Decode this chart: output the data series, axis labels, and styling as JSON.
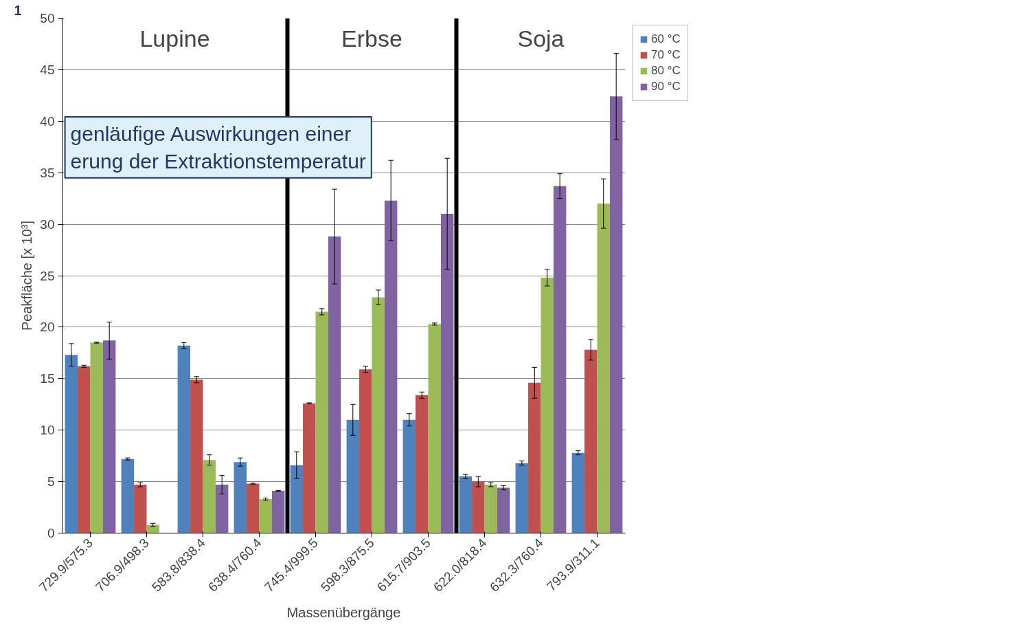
{
  "chart_data": {
    "type": "bar",
    "xlabel": "Massenübergänge",
    "ylabel": "Peakfläche [x 10³]",
    "categories": [
      "729.9/575.3",
      "706.9/498.3",
      "583.8/838.4",
      "638.4/760.4",
      "745.4/999.5",
      "598.3/875.5",
      "615.7/903.5",
      "622.0/818.4",
      "632.3/760.4",
      "793.9/311.1"
    ],
    "series": [
      {
        "name": "60 °C",
        "color": "#4f81bd",
        "values": [
          17.3,
          7.2,
          18.2,
          6.9,
          6.6,
          11.0,
          11.0,
          5.5,
          6.8,
          7.8
        ],
        "errors": [
          1.1,
          0.1,
          0.3,
          0.4,
          1.3,
          1.5,
          0.6,
          0.2,
          0.2,
          0.2
        ]
      },
      {
        "name": "70 °C",
        "color": "#c0504d",
        "values": [
          16.2,
          4.7,
          14.9,
          4.8,
          12.6,
          15.9,
          13.4,
          5.0,
          14.6,
          17.8
        ],
        "errors": [
          0.1,
          0.2,
          0.3,
          0.05,
          0.05,
          0.3,
          0.3,
          0.5,
          1.5,
          1.0
        ]
      },
      {
        "name": "80 °C",
        "color": "#9bbb59",
        "values": [
          18.5,
          0.8,
          7.1,
          3.3,
          21.5,
          22.9,
          20.3,
          4.7,
          24.8,
          32.0
        ],
        "errors": [
          0.05,
          0.15,
          0.5,
          0.1,
          0.3,
          0.7,
          0.1,
          0.2,
          0.8,
          2.4
        ]
      },
      {
        "name": "90 °C",
        "color": "#8064a2",
        "values": [
          18.7,
          null,
          4.7,
          4.1,
          28.8,
          32.3,
          31.0,
          4.4,
          33.7,
          42.4
        ],
        "errors": [
          1.8,
          null,
          0.9,
          0.05,
          4.6,
          3.9,
          5.4,
          0.2,
          1.2,
          4.2
        ]
      }
    ],
    "ylim": [
      0,
      50
    ],
    "yticks": [
      0,
      5,
      10,
      15,
      20,
      25,
      30,
      35,
      40,
      45,
      50
    ],
    "grid": "y",
    "legend": "top right",
    "annotations": [
      "Lupine",
      "Erbse",
      "Soja",
      "genläufige Auswirkungen einer\nerung der Extraktionstemperatur",
      "1"
    ]
  }
}
